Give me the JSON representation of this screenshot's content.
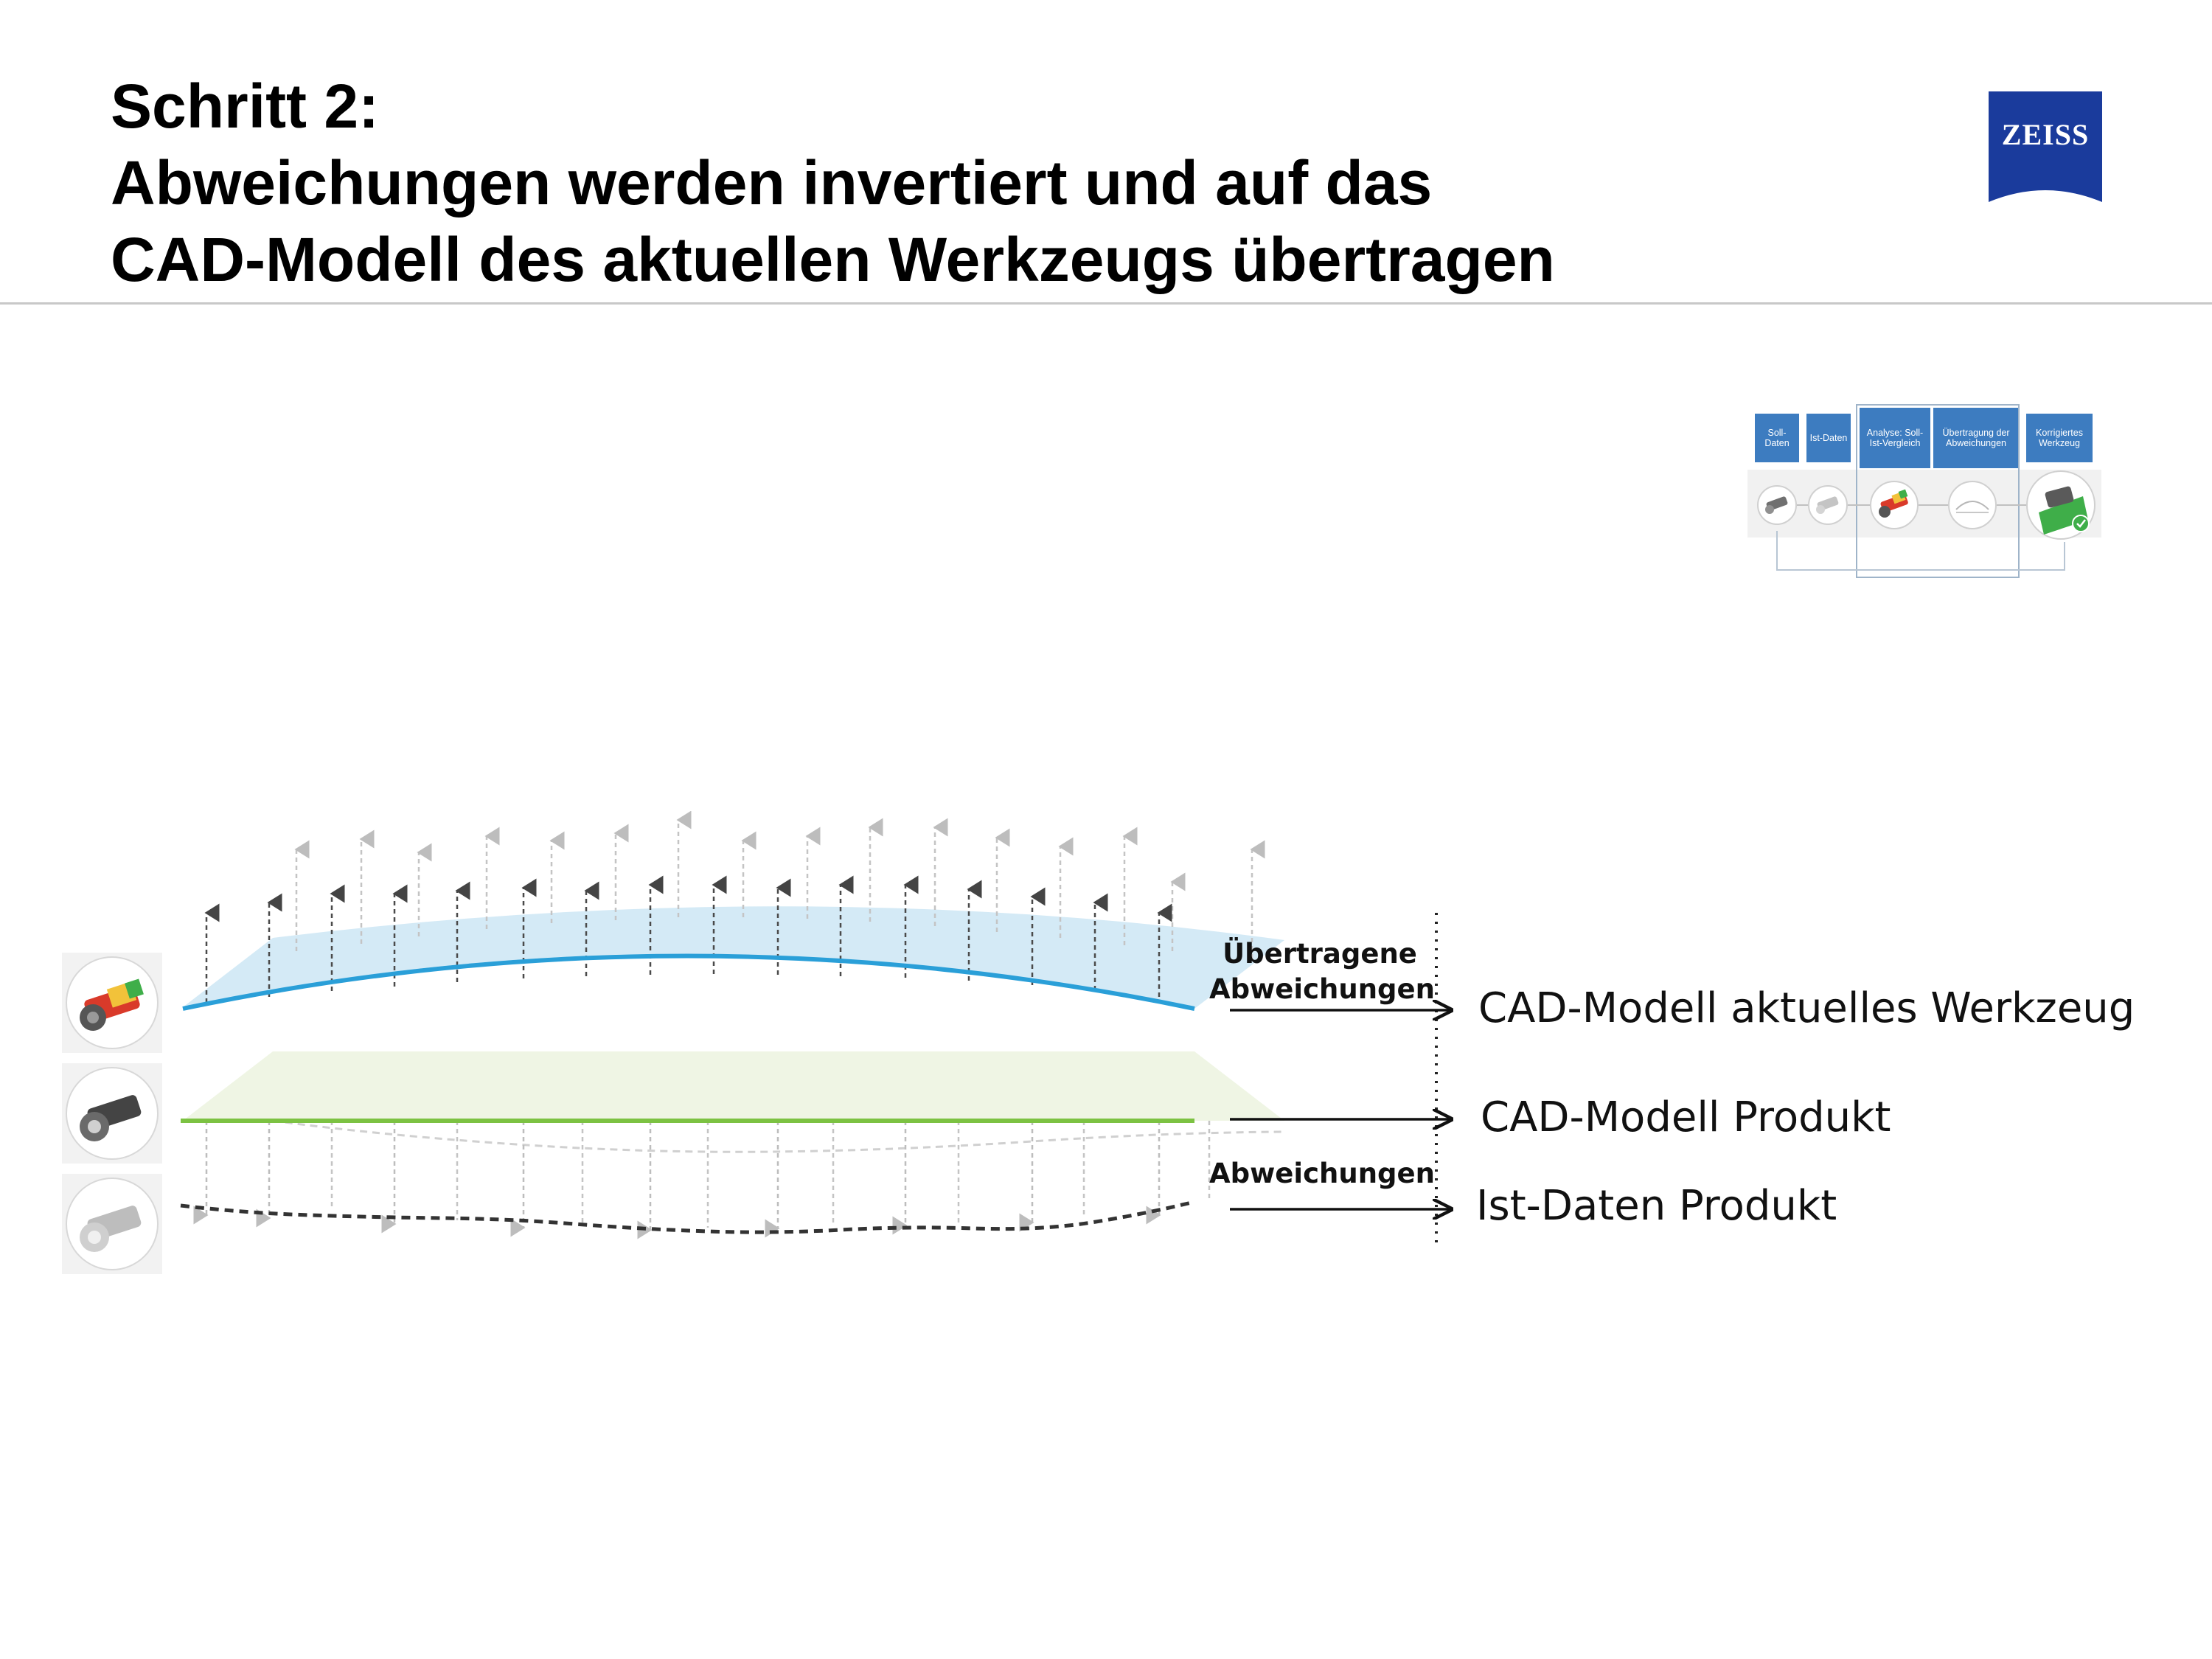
{
  "header": {
    "title_line1": "Schritt 2:",
    "title_line2": "Abweichungen werden invertiert und auf das",
    "title_line3": "CAD-Modell des aktuellen Werkzeugs übertragen",
    "logo_text": "ZEISS",
    "logo_color": "#1a3b9c"
  },
  "process_strip": {
    "steps": [
      {
        "label": "Soll-Daten"
      },
      {
        "label": "Ist-Daten"
      },
      {
        "label": "Analyse: Soll-Ist-Vergleich"
      },
      {
        "label": "Übertragung der Abweichungen"
      },
      {
        "label": "Korrigiertes Werkzeug"
      }
    ],
    "step_color": "#3d7cc0"
  },
  "diagram": {
    "label_transferred_line1": "Übertragene",
    "label_transferred_line2": "Abweichungen",
    "label_deviations": "Abweichungen",
    "layers": [
      {
        "label": "CAD-Modell aktuelles Werkzeug",
        "color": "#2a9fd8"
      },
      {
        "label": "CAD-Modell Produkt",
        "color": "#7cc242"
      },
      {
        "label": "Ist-Daten Produkt",
        "color": "#333333"
      }
    ]
  }
}
